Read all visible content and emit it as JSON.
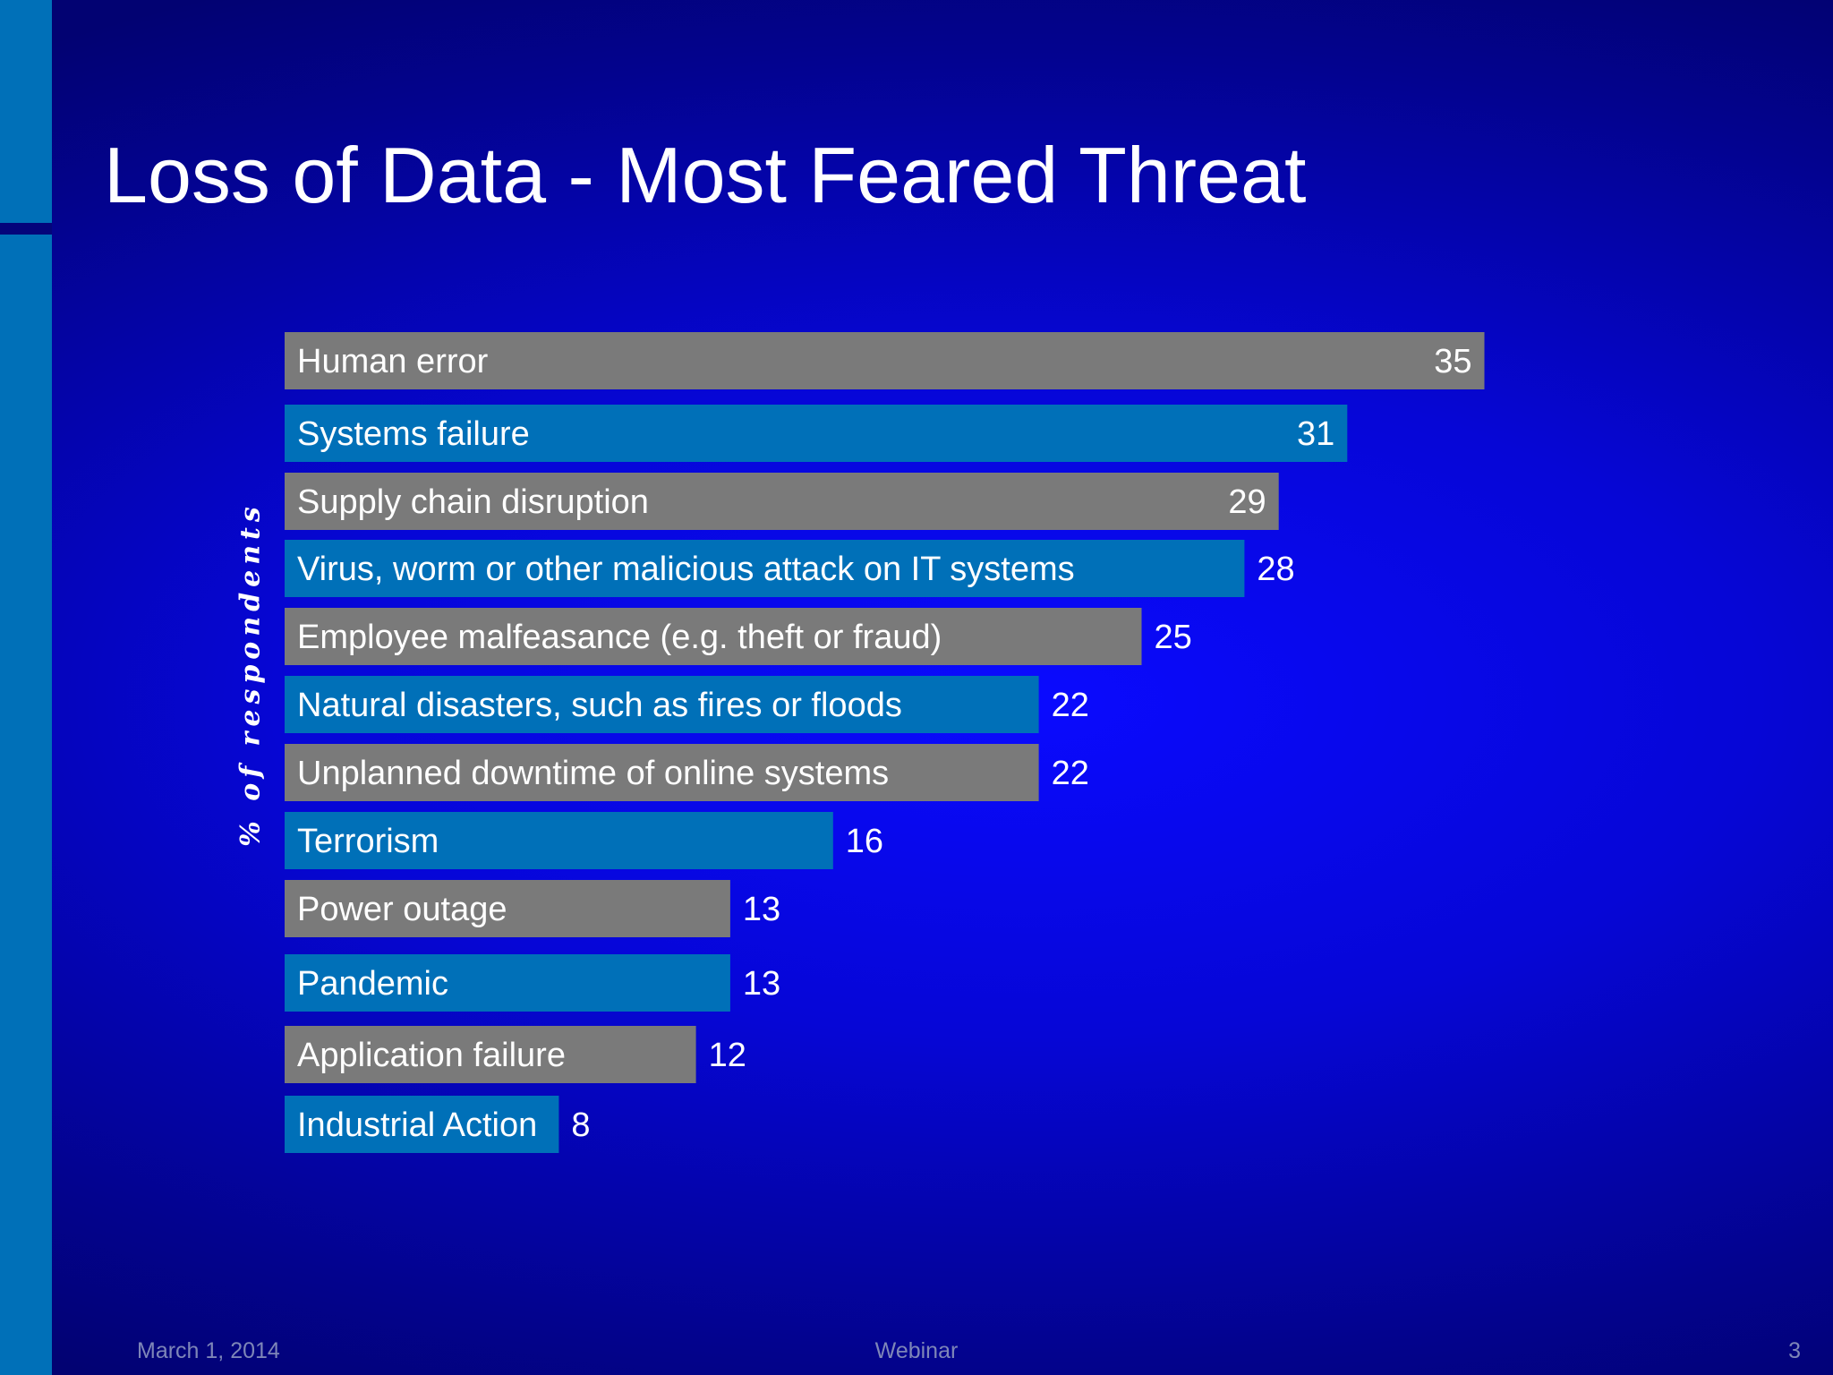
{
  "slide": {
    "title": "Loss of Data - Most Feared Threat"
  },
  "footer": {
    "date": "March 1, 2014",
    "center": "Webinar",
    "page_number": "3"
  },
  "colors": {
    "gray_bar": "#7a7a7a",
    "blue_bar": "#0070b8",
    "side_bar": "#0070b8"
  },
  "chart_data": {
    "type": "bar",
    "orientation": "horizontal",
    "title": "",
    "xlabel": "",
    "ylabel": "% of respondents",
    "grid": false,
    "legend": "none",
    "xlim": [
      0,
      35
    ],
    "categories": [
      "Human error",
      "Systems failure",
      "Supply chain disruption",
      "Virus, worm or other malicious attack on IT systems",
      "Employee malfeasance (e.g. theft or fraud)",
      "Natural disasters, such as fires or floods",
      "Unplanned downtime of online systems",
      "Terrorism",
      "Power outage",
      "Pandemic",
      "Application failure",
      "Industrial Action"
    ],
    "values": [
      35,
      31,
      29,
      28,
      25,
      22,
      22,
      16,
      13,
      13,
      12,
      8
    ],
    "bar_colors": [
      "gray",
      "blue",
      "gray",
      "blue",
      "gray",
      "blue",
      "gray",
      "blue",
      "gray",
      "blue",
      "gray",
      "blue"
    ]
  }
}
